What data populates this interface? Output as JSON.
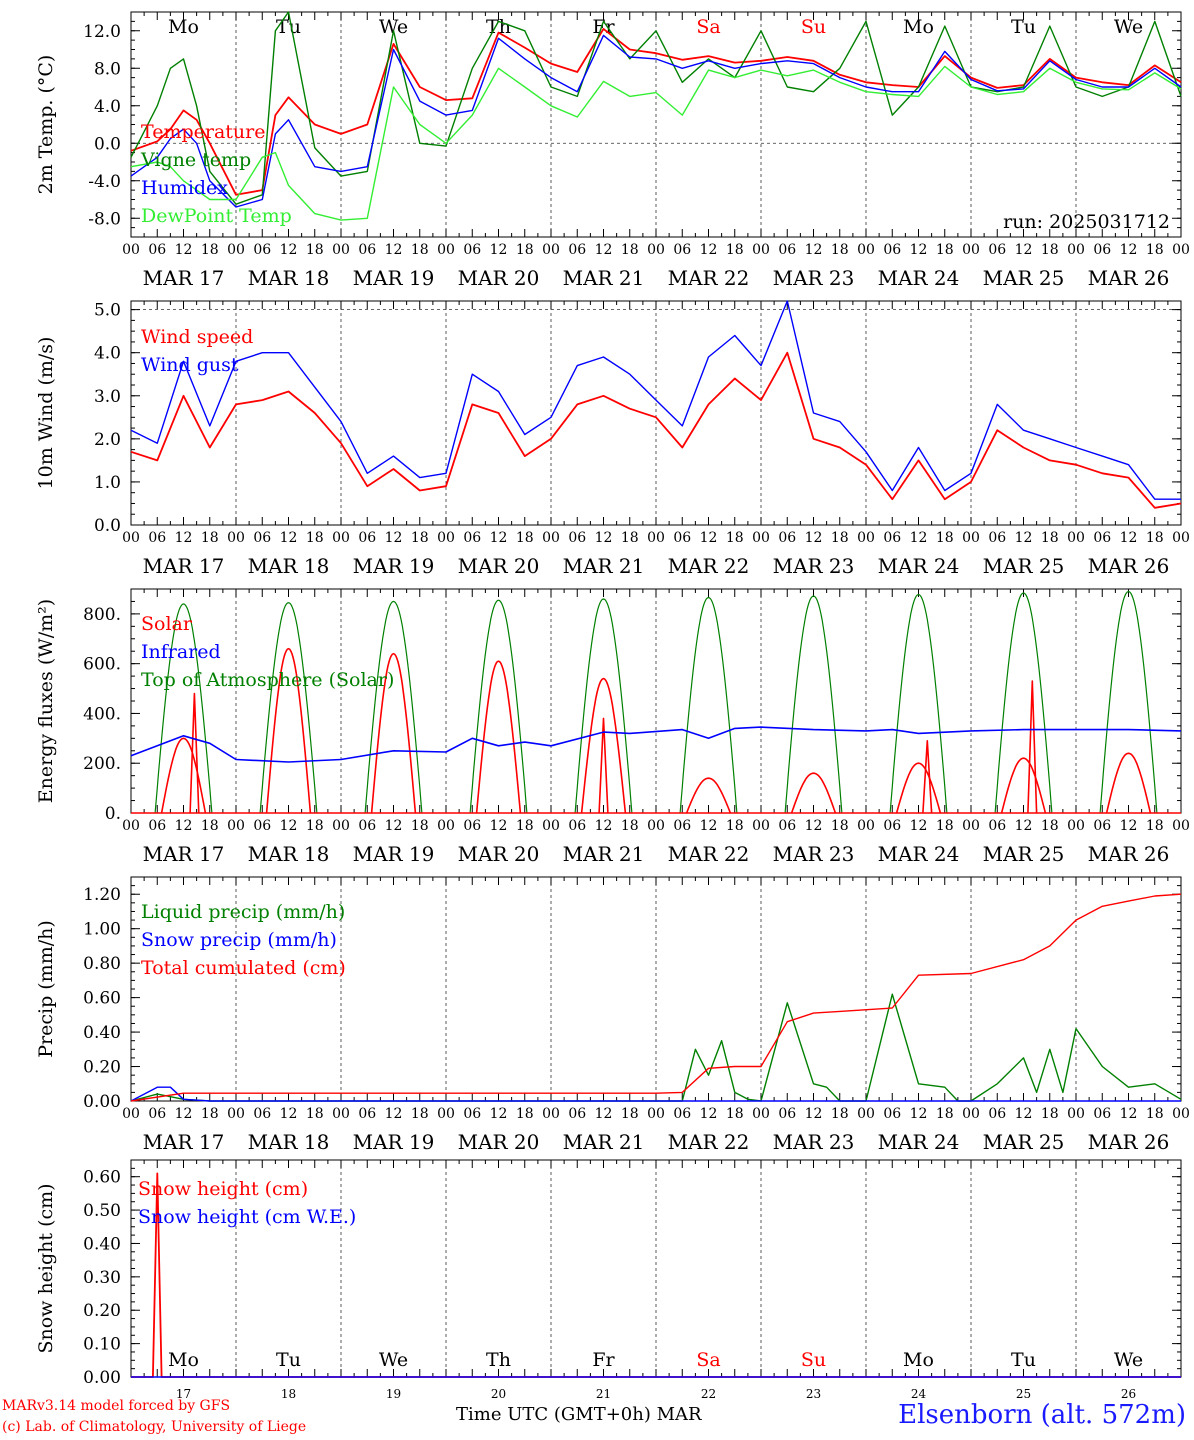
{
  "figure": {
    "station": "Elsenborn (alt. 572m)",
    "credit_model": "MARv3.14 model forced by GFS",
    "credit_lab": "(c) Lab. of Climatology, University of Liege",
    "x_caption": "Time UTC (GMT+0h)",
    "month": "MAR",
    "run_label": "run: 2025031712"
  },
  "days": {
    "weekday_abbr": [
      "Mo",
      "Tu",
      "We",
      "Th",
      "Fr",
      "Sa",
      "Su",
      "Mo",
      "Tu",
      "We"
    ],
    "date_labels": [
      "MAR 17",
      "MAR 18",
      "MAR 19",
      "MAR 20",
      "MAR 21",
      "MAR 22",
      "MAR 23",
      "MAR 24",
      "MAR 25",
      "MAR 26"
    ],
    "day_numbers": [
      "17",
      "18",
      "19",
      "20",
      "21",
      "22",
      "23",
      "24",
      "25",
      "26"
    ],
    "hour_ticks": [
      "00",
      "06",
      "12",
      "18"
    ],
    "final_tick": "00",
    "weekend_color": "#ff0000"
  },
  "colors": {
    "red": "#ff0000",
    "green": "#008000",
    "blue": "#0000ff",
    "lightgreen": "#33ee33"
  },
  "chart_data": [
    {
      "type": "line",
      "ylabel": "2m Temp. (°C)",
      "ylim": [
        -10,
        14
      ],
      "yticks": [
        -8,
        -4,
        0,
        4,
        8,
        12
      ],
      "ytick_labels": [
        "-8.0",
        "-4.0",
        "0.0",
        "4.0",
        "8.0",
        "12.0"
      ],
      "hlines": [
        0
      ],
      "x_unit": "hours since MAR 17 00 UTC",
      "series": [
        {
          "name": "Temperature",
          "color": "#ff0000",
          "x": [
            0,
            6,
            9,
            12,
            15,
            18,
            24,
            30,
            33,
            36,
            42,
            48,
            54,
            60,
            66,
            72,
            78,
            84,
            90,
            96,
            102,
            108,
            114,
            120,
            126,
            132,
            138,
            144,
            150,
            156,
            162,
            168,
            174,
            180,
            186,
            192,
            198,
            204,
            210,
            216,
            222,
            228,
            234,
            240
          ],
          "y": [
            -0.8,
            0.2,
            1.5,
            3.5,
            2.5,
            0.0,
            -5.5,
            -5.0,
            3.0,
            4.9,
            2.0,
            1.0,
            2.0,
            10.6,
            6.0,
            4.6,
            4.8,
            11.8,
            10.2,
            8.5,
            7.6,
            12.2,
            10.0,
            9.6,
            8.9,
            9.3,
            8.6,
            8.8,
            9.2,
            8.8,
            7.3,
            6.5,
            6.2,
            6.0,
            9.3,
            7.0,
            5.9,
            6.2,
            9.0,
            7.0,
            6.5,
            6.2,
            8.3,
            6.5
          ]
        },
        {
          "name": "Vigne temp",
          "color": "#008000",
          "x": [
            0,
            6,
            9,
            12,
            15,
            18,
            24,
            30,
            33,
            36,
            42,
            48,
            54,
            60,
            66,
            72,
            78,
            84,
            90,
            96,
            102,
            108,
            114,
            120,
            126,
            132,
            138,
            144,
            150,
            156,
            162,
            168,
            174,
            180,
            186,
            192,
            198,
            204,
            210,
            216,
            222,
            228,
            234,
            240
          ],
          "y": [
            -1.5,
            4.0,
            8.0,
            9.0,
            4.0,
            -3.0,
            -6.5,
            -5.5,
            12.0,
            14.0,
            -0.5,
            -3.5,
            -3.0,
            12.0,
            0.0,
            -0.3,
            8.0,
            13.0,
            12.0,
            6.0,
            5.0,
            13.0,
            9.0,
            12.0,
            6.5,
            9.0,
            7.0,
            12.0,
            6.0,
            5.5,
            8.0,
            13.0,
            3.0,
            6.0,
            12.5,
            6.0,
            5.5,
            6.0,
            12.5,
            6.0,
            5.0,
            6.0,
            13.0,
            5.0
          ]
        },
        {
          "name": "Humidex",
          "color": "#0000ff",
          "x": [
            0,
            6,
            9,
            12,
            15,
            18,
            24,
            30,
            33,
            36,
            42,
            48,
            54,
            60,
            66,
            72,
            78,
            84,
            90,
            96,
            102,
            108,
            114,
            120,
            126,
            132,
            138,
            144,
            150,
            156,
            162,
            168,
            174,
            180,
            186,
            192,
            198,
            204,
            210,
            216,
            222,
            228,
            234,
            240
          ],
          "y": [
            -3.5,
            -1.5,
            0.5,
            1.5,
            0.0,
            -4.0,
            -6.8,
            -6.0,
            1.0,
            2.5,
            -2.5,
            -3.0,
            -2.5,
            10.0,
            4.5,
            3.0,
            3.5,
            11.2,
            9.0,
            7.0,
            5.5,
            11.5,
            9.2,
            9.0,
            8.0,
            8.8,
            8.0,
            8.5,
            8.8,
            8.5,
            7.0,
            6.0,
            5.5,
            5.5,
            9.8,
            6.8,
            5.6,
            5.8,
            8.8,
            6.8,
            6.0,
            6.0,
            8.0,
            6.0
          ]
        },
        {
          "name": "DewPoint Temp",
          "color": "#33ee33",
          "x": [
            0,
            6,
            9,
            12,
            15,
            18,
            24,
            30,
            33,
            36,
            42,
            48,
            54,
            60,
            66,
            72,
            78,
            84,
            90,
            96,
            102,
            108,
            114,
            120,
            126,
            132,
            138,
            144,
            150,
            156,
            162,
            168,
            174,
            180,
            186,
            192,
            198,
            204,
            210,
            216,
            222,
            228,
            234,
            240
          ],
          "y": [
            -2.5,
            -2.0,
            -2.5,
            -4.0,
            -5.0,
            -6.0,
            -6.0,
            -1.5,
            -1.0,
            -4.5,
            -7.5,
            -8.2,
            -8.0,
            6.0,
            2.0,
            0.0,
            3.0,
            8.0,
            6.0,
            4.0,
            2.8,
            6.6,
            5.0,
            5.4,
            3.0,
            7.8,
            7.0,
            7.8,
            7.2,
            7.8,
            6.5,
            5.5,
            5.2,
            5.0,
            8.2,
            6.0,
            5.2,
            5.5,
            8.0,
            6.5,
            5.8,
            5.7,
            7.5,
            5.8
          ]
        }
      ]
    },
    {
      "type": "line",
      "ylabel": "10m Wind (m/s)",
      "ylim": [
        0,
        5.2
      ],
      "yticks": [
        0,
        1,
        2,
        3,
        4,
        5
      ],
      "ytick_labels": [
        "0.0",
        "1.0",
        "2.0",
        "3.0",
        "4.0",
        "5.0"
      ],
      "hlines": [
        5
      ],
      "x_unit": "hours since MAR 17 00 UTC",
      "series": [
        {
          "name": "Wind speed",
          "color": "#ff0000",
          "x": [
            0,
            6,
            12,
            18,
            24,
            30,
            36,
            42,
            48,
            54,
            60,
            66,
            72,
            78,
            84,
            90,
            96,
            102,
            108,
            114,
            120,
            126,
            132,
            138,
            144,
            150,
            156,
            162,
            168,
            174,
            180,
            186,
            192,
            198,
            204,
            210,
            216,
            222,
            228,
            234,
            240
          ],
          "y": [
            1.7,
            1.5,
            3.0,
            1.8,
            2.8,
            2.9,
            3.1,
            2.6,
            1.9,
            0.9,
            1.3,
            0.8,
            0.9,
            2.8,
            2.6,
            1.6,
            2.0,
            2.8,
            3.0,
            2.7,
            2.5,
            1.8,
            2.8,
            3.4,
            2.9,
            4.0,
            2.0,
            1.8,
            1.4,
            0.6,
            1.5,
            0.6,
            1.0,
            2.2,
            1.8,
            1.5,
            1.4,
            1.2,
            1.1,
            0.4,
            0.5
          ]
        },
        {
          "name": "Wind gust",
          "color": "#0000ff",
          "x": [
            0,
            6,
            12,
            18,
            24,
            30,
            36,
            42,
            48,
            54,
            60,
            66,
            72,
            78,
            84,
            90,
            96,
            102,
            108,
            114,
            120,
            126,
            132,
            138,
            144,
            150,
            156,
            162,
            168,
            174,
            180,
            186,
            192,
            198,
            204,
            210,
            216,
            222,
            228,
            234,
            240
          ],
          "y": [
            2.2,
            1.9,
            3.8,
            2.3,
            3.8,
            4.0,
            4.0,
            3.2,
            2.4,
            1.2,
            1.6,
            1.1,
            1.2,
            3.5,
            3.1,
            2.1,
            2.5,
            3.7,
            3.9,
            3.5,
            2.9,
            2.3,
            3.9,
            4.4,
            3.7,
            5.2,
            2.6,
            2.4,
            1.7,
            0.8,
            1.8,
            0.8,
            1.2,
            2.8,
            2.2,
            2.0,
            1.8,
            1.6,
            1.4,
            0.6,
            0.6
          ]
        }
      ]
    },
    {
      "type": "line",
      "ylabel": "Energy fluxes (W/m²)",
      "ylim": [
        0,
        900
      ],
      "yticks": [
        0,
        200,
        400,
        600,
        800
      ],
      "ytick_labels": [
        "0.",
        "200.",
        "400.",
        "600.",
        "800."
      ],
      "hlines": [],
      "x_unit": "hours since MAR 17 00 UTC",
      "diurnal": {
        "sunrise_hour": 5.5,
        "sunset_hour": 18.5,
        "toa_peak": [
          840,
          845,
          850,
          855,
          860,
          866,
          872,
          878,
          884,
          890
        ],
        "solar_peak": [
          300,
          660,
          640,
          610,
          540,
          140,
          160,
          200,
          220,
          240
        ],
        "solar_spike": [
          {
            "x": 14.5,
            "y": 480
          },
          {
            "x": 108,
            "y": 380
          },
          {
            "x": 182,
            "y": 290
          },
          {
            "x": 206,
            "y": 530
          }
        ]
      },
      "series": [
        {
          "name": "Solar",
          "color": "#ff0000"
        },
        {
          "name": "Infrared",
          "color": "#0000ff",
          "x": [
            0,
            12,
            18,
            24,
            36,
            48,
            60,
            72,
            78,
            84,
            90,
            96,
            108,
            114,
            126,
            132,
            138,
            144,
            156,
            168,
            174,
            180,
            192,
            204,
            216,
            228,
            240
          ],
          "y": [
            230,
            310,
            280,
            215,
            205,
            215,
            250,
            245,
            300,
            270,
            285,
            270,
            325,
            320,
            335,
            300,
            340,
            345,
            335,
            330,
            335,
            320,
            330,
            335,
            335,
            335,
            330
          ]
        },
        {
          "name": "Top of Atmosphere (Solar)",
          "color": "#008000"
        }
      ]
    },
    {
      "type": "line",
      "ylabel": "Precip (mm/h)",
      "ylim": [
        0,
        1.3
      ],
      "yticks": [
        0,
        0.2,
        0.4,
        0.6,
        0.8,
        1.0,
        1.2
      ],
      "ytick_labels": [
        "0.00",
        "0.20",
        "0.40",
        "0.60",
        "0.80",
        "1.00",
        "1.20"
      ],
      "hlines": [],
      "x_unit": "hours since MAR 17 00 UTC",
      "series": [
        {
          "name": "Liquid precip (mm/h)",
          "color": "#008000",
          "x": [
            0,
            6,
            12,
            18,
            120,
            126,
            129,
            132,
            135,
            138,
            141,
            144,
            150,
            156,
            159,
            162,
            168,
            174,
            180,
            186,
            189,
            192,
            198,
            204,
            207,
            210,
            213,
            216,
            222,
            228,
            234,
            240
          ],
          "y": [
            0,
            0.04,
            0.01,
            0,
            0,
            0,
            0.3,
            0.15,
            0.35,
            0.05,
            0.01,
            0,
            0.57,
            0.1,
            0.08,
            0,
            0,
            0.62,
            0.1,
            0.08,
            0,
            0,
            0.1,
            0.25,
            0.05,
            0.3,
            0.05,
            0.42,
            0.2,
            0.08,
            0.1,
            0.01
          ]
        },
        {
          "name": "Snow precip (mm/h)",
          "color": "#0000ff",
          "x": [
            0,
            6,
            9,
            12,
            18,
            240
          ],
          "y": [
            0,
            0.08,
            0.08,
            0.01,
            0,
            0
          ]
        },
        {
          "name": "Total cumulated (cm)",
          "color": "#ff0000",
          "x": [
            0,
            12,
            120,
            126,
            132,
            138,
            144,
            150,
            156,
            162,
            174,
            180,
            192,
            204,
            210,
            216,
            222,
            228,
            234,
            240
          ],
          "y": [
            0,
            0.045,
            0.045,
            0.05,
            0.19,
            0.2,
            0.2,
            0.46,
            0.51,
            0.52,
            0.54,
            0.73,
            0.74,
            0.82,
            0.9,
            1.05,
            1.13,
            1.16,
            1.19,
            1.2
          ]
        }
      ]
    },
    {
      "type": "line",
      "ylabel": "Snow height (cm)",
      "ylim": [
        0,
        0.65
      ],
      "yticks": [
        0,
        0.1,
        0.2,
        0.3,
        0.4,
        0.5,
        0.6
      ],
      "ytick_labels": [
        "0.00",
        "0.10",
        "0.20",
        "0.30",
        "0.40",
        "0.50",
        "0.60"
      ],
      "hlines": [],
      "x_unit": "hours since MAR 17 00 UTC",
      "series": [
        {
          "name": "Snow height (cm)",
          "color": "#ff0000",
          "x": [
            0,
            5,
            6,
            7,
            240
          ],
          "y": [
            0,
            0,
            0.61,
            0,
            0
          ]
        },
        {
          "name": "Snow height (cm W.E.)",
          "color": "#0000ff",
          "x": [
            0,
            240
          ],
          "y": [
            0,
            0
          ]
        }
      ]
    }
  ]
}
